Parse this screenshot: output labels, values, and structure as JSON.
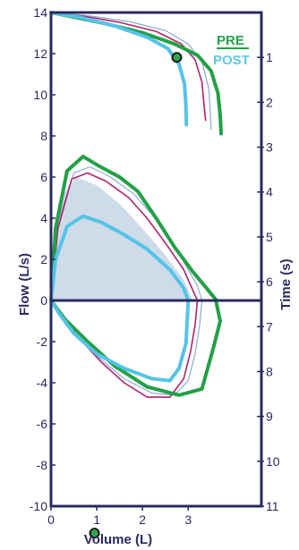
{
  "chart_data": {
    "type": "line",
    "title": "",
    "xlabel": "Volume (L)",
    "ylabel": "Flow (L/s)",
    "y2label": "Time (s)",
    "xlim": [
      0,
      4.6
    ],
    "ylim": [
      -10,
      14
    ],
    "y2lim": [
      0,
      11
    ],
    "y2_inverted": true,
    "x_ticks": [
      "0",
      "1",
      "2",
      "3"
    ],
    "y_ticks": [
      "14",
      "12",
      "10",
      "8",
      "6",
      "4",
      "2",
      "0",
      "-2",
      "-4",
      "-6",
      "-8",
      "-10"
    ],
    "y2_ticks": [
      "1",
      "2",
      "3",
      "4",
      "5",
      "6",
      "7",
      "8",
      "9",
      "10",
      "11"
    ],
    "grid": false,
    "legend": {
      "position": "top-right",
      "entries": [
        "PRE",
        "POST"
      ]
    },
    "colors": {
      "pre": "#23a046",
      "post": "#55c3e8",
      "trial_magenta": "#b0236e",
      "trial_thin": "#8aaad0",
      "predicted_fill": "#c8d8e6",
      "axis": "#2a2a5e",
      "marker_fill": "#2ea84a"
    },
    "series": [
      {
        "name": "PRE",
        "kind": "volume-time",
        "points": [
          [
            0.0,
            0.0
          ],
          [
            0.5,
            0.1
          ],
          [
            1.2,
            0.25
          ],
          [
            2.0,
            0.45
          ],
          [
            2.7,
            0.7
          ],
          [
            3.2,
            0.95
          ],
          [
            3.5,
            1.3
          ],
          [
            3.65,
            1.8
          ],
          [
            3.7,
            2.3
          ],
          [
            3.72,
            2.7
          ]
        ]
      },
      {
        "name": "POST",
        "kind": "volume-time",
        "points": [
          [
            0.0,
            0.0
          ],
          [
            0.6,
            0.1
          ],
          [
            1.4,
            0.3
          ],
          [
            2.1,
            0.55
          ],
          [
            2.55,
            0.8
          ],
          [
            2.8,
            1.15
          ],
          [
            2.92,
            1.6
          ],
          [
            2.95,
            2.1
          ],
          [
            2.96,
            2.5
          ]
        ]
      },
      {
        "kind": "volume-time",
        "points": [
          [
            0.0,
            0.0
          ],
          [
            0.7,
            0.08
          ],
          [
            1.5,
            0.22
          ],
          [
            2.3,
            0.42
          ],
          [
            2.85,
            0.7
          ],
          [
            3.15,
            1.05
          ],
          [
            3.3,
            1.55
          ],
          [
            3.35,
            2.1
          ],
          [
            3.38,
            2.4
          ]
        ]
      },
      {
        "kind": "volume-time",
        "points": [
          [
            0.0,
            0.0
          ],
          [
            0.8,
            0.07
          ],
          [
            1.7,
            0.2
          ],
          [
            2.5,
            0.4
          ],
          [
            3.0,
            0.7
          ],
          [
            3.3,
            1.1
          ],
          [
            3.45,
            1.7
          ],
          [
            3.48,
            2.2
          ],
          [
            3.5,
            2.6
          ]
        ]
      },
      {
        "name": "PRE",
        "kind": "flow-volume",
        "points": [
          [
            0.0,
            0.0
          ],
          [
            0.1,
            3.5
          ],
          [
            0.35,
            6.3
          ],
          [
            0.7,
            7.0
          ],
          [
            1.0,
            6.6
          ],
          [
            1.5,
            6.0
          ],
          [
            1.9,
            5.3
          ],
          [
            2.3,
            4.0
          ],
          [
            2.7,
            2.6
          ],
          [
            3.1,
            1.4
          ],
          [
            3.4,
            0.6
          ],
          [
            3.6,
            0.05
          ],
          [
            3.7,
            -1.0
          ],
          [
            3.55,
            -2.3
          ],
          [
            3.4,
            -3.5
          ],
          [
            3.3,
            -4.3
          ],
          [
            2.8,
            -4.6
          ],
          [
            2.1,
            -4.2
          ],
          [
            1.4,
            -3.2
          ],
          [
            0.8,
            -2.0
          ],
          [
            0.3,
            -0.9
          ],
          [
            0.0,
            0.0
          ]
        ]
      },
      {
        "kind": "flow-volume",
        "points": [
          [
            0.0,
            0.0
          ],
          [
            0.15,
            3.5
          ],
          [
            0.45,
            5.9
          ],
          [
            0.8,
            6.2
          ],
          [
            1.2,
            5.8
          ],
          [
            1.7,
            5.0
          ],
          [
            2.1,
            4.0
          ],
          [
            2.5,
            2.8
          ],
          [
            2.9,
            1.5
          ],
          [
            3.1,
            0.5
          ],
          [
            3.2,
            0.0
          ],
          [
            3.15,
            -1.2
          ],
          [
            3.05,
            -2.5
          ],
          [
            2.9,
            -3.8
          ],
          [
            2.6,
            -4.7
          ],
          [
            2.1,
            -4.7
          ],
          [
            1.6,
            -4.0
          ],
          [
            1.1,
            -3.0
          ],
          [
            0.6,
            -1.8
          ],
          [
            0.2,
            -0.6
          ],
          [
            0.0,
            0.0
          ]
        ]
      },
      {
        "kind": "flow-volume",
        "points": [
          [
            0.0,
            0.0
          ],
          [
            0.15,
            3.8
          ],
          [
            0.5,
            6.2
          ],
          [
            0.85,
            6.5
          ],
          [
            1.3,
            6.0
          ],
          [
            1.8,
            5.2
          ],
          [
            2.2,
            4.2
          ],
          [
            2.6,
            3.0
          ],
          [
            2.95,
            1.7
          ],
          [
            3.2,
            0.7
          ],
          [
            3.3,
            0.0
          ],
          [
            3.25,
            -1.2
          ],
          [
            3.15,
            -2.6
          ],
          [
            3.0,
            -3.9
          ],
          [
            2.7,
            -4.6
          ],
          [
            2.2,
            -4.5
          ],
          [
            1.6,
            -3.8
          ],
          [
            1.0,
            -2.7
          ],
          [
            0.5,
            -1.5
          ],
          [
            0.15,
            -0.4
          ],
          [
            0.0,
            0.0
          ]
        ]
      },
      {
        "name": "POST",
        "kind": "flow-volume",
        "points": [
          [
            0.0,
            0.0
          ],
          [
            0.1,
            2.0
          ],
          [
            0.35,
            3.6
          ],
          [
            0.7,
            4.1
          ],
          [
            1.1,
            3.8
          ],
          [
            1.6,
            3.2
          ],
          [
            2.1,
            2.5
          ],
          [
            2.6,
            1.5
          ],
          [
            2.9,
            0.6
          ],
          [
            3.0,
            0.0
          ],
          [
            2.98,
            -0.9
          ],
          [
            2.95,
            -2.1
          ],
          [
            2.8,
            -3.3
          ],
          [
            2.6,
            -3.9
          ],
          [
            2.2,
            -3.8
          ],
          [
            1.6,
            -3.3
          ],
          [
            1.0,
            -2.6
          ],
          [
            0.5,
            -1.6
          ],
          [
            0.2,
            -0.7
          ],
          [
            0.0,
            0.0
          ]
        ]
      },
      {
        "kind": "predicted-area",
        "points": [
          [
            0.0,
            0.0
          ],
          [
            0.05,
            2.5
          ],
          [
            0.2,
            5.0
          ],
          [
            0.55,
            6.0
          ],
          [
            1.0,
            5.6
          ],
          [
            1.5,
            4.7
          ],
          [
            2.0,
            3.5
          ],
          [
            2.5,
            2.2
          ],
          [
            2.9,
            1.0
          ],
          [
            3.1,
            0.0
          ]
        ]
      }
    ],
    "markers": [
      {
        "axis": "volume-time",
        "x": 2.75,
        "y": 1.0
      },
      {
        "axis": "volume-time",
        "x": 0.95,
        "y": 11.6
      }
    ]
  }
}
